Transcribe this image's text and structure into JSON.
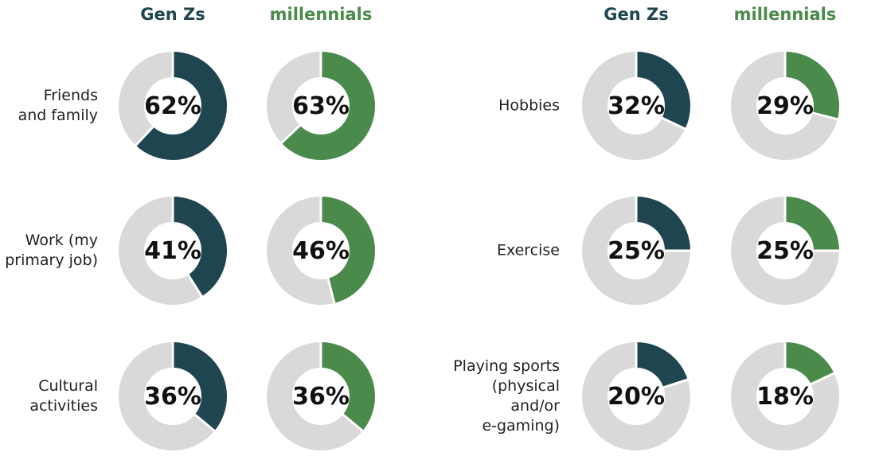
{
  "colors": {
    "genz": "#1f4650",
    "millennials": "#4a8a4b",
    "track": "#d9d9d9"
  },
  "chart_data": [
    {
      "type": "pie",
      "panel": "left",
      "series_headers": [
        "Gen Zs",
        "millennials"
      ],
      "categories": [
        [
          "Friends",
          "and family"
        ],
        [
          "Work (my",
          "primary job)"
        ],
        [
          "Cultural",
          "activities"
        ]
      ],
      "series": [
        {
          "name": "Gen Zs",
          "values": [
            62,
            41,
            36
          ],
          "labels": [
            "62%",
            "41%",
            "36%"
          ]
        },
        {
          "name": "millennials",
          "values": [
            63,
            46,
            36
          ],
          "labels": [
            "63%",
            "46%",
            "36%"
          ]
        }
      ],
      "unit": "%"
    },
    {
      "type": "pie",
      "panel": "right",
      "series_headers": [
        "Gen Zs",
        "millennials"
      ],
      "categories": [
        [
          "Hobbies"
        ],
        [
          "Exercise"
        ],
        [
          "Playing sports",
          "(physical and/or",
          "e-gaming)"
        ]
      ],
      "series": [
        {
          "name": "Gen Zs",
          "values": [
            32,
            25,
            20
          ],
          "labels": [
            "32%",
            "25%",
            "20%"
          ]
        },
        {
          "name": "millennials",
          "values": [
            29,
            25,
            18
          ],
          "labels": [
            "29%",
            "25%",
            "18%"
          ]
        }
      ],
      "unit": "%"
    }
  ]
}
